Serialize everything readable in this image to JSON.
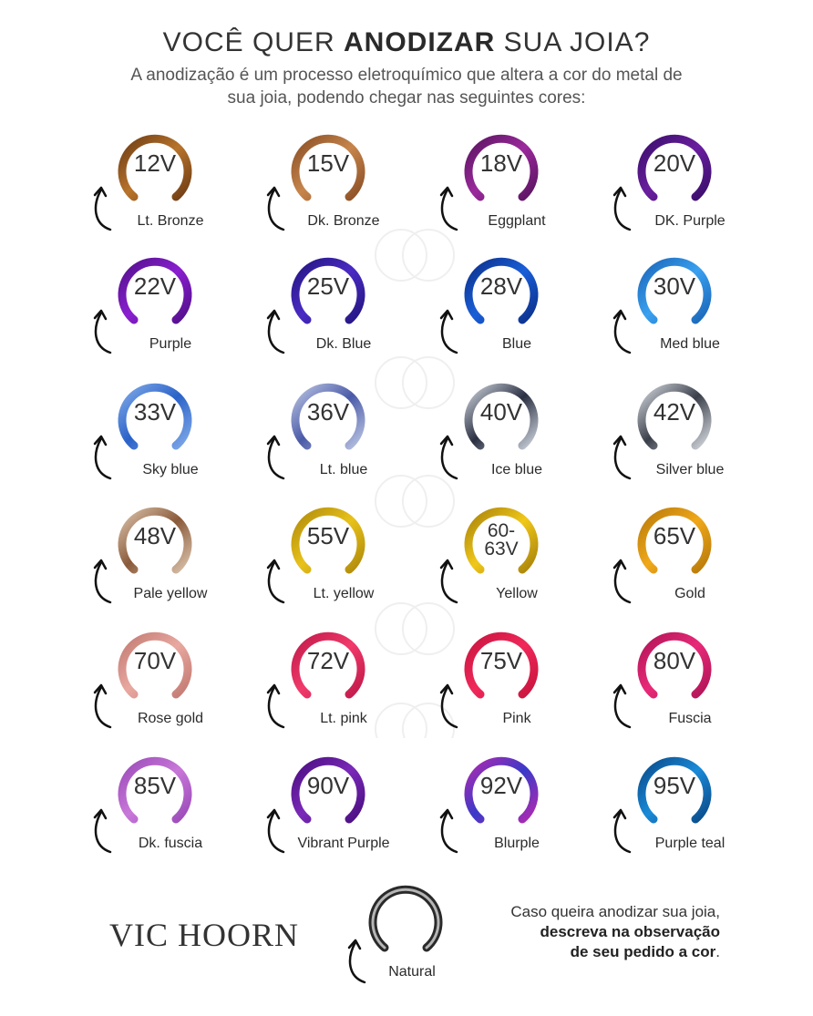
{
  "header": {
    "title_pre": "VOCÊ QUER ",
    "title_bold": "ANODIZAR",
    "title_post": " SUA JOIA?",
    "subtitle": "A anodização é um processo eletroquímico que altera a cor do metal de sua joia, podendo chegar nas seguintes cores:"
  },
  "colors": [
    {
      "volt": "12V",
      "name": "Lt. Bronze",
      "color": "#b8742c",
      "accent": "#6e3c14"
    },
    {
      "volt": "15V",
      "name": "Dk. Bronze",
      "color": "#c7854c",
      "accent": "#8a4f25"
    },
    {
      "volt": "18V",
      "name": "Eggplant",
      "color": "#9b2a9c",
      "accent": "#5a1460"
    },
    {
      "volt": "20V",
      "name": "DK. Purple",
      "color": "#6a1f9e",
      "accent": "#3a0e6b"
    },
    {
      "volt": "22V",
      "name": "Purple",
      "color": "#8a1fd0",
      "accent": "#52108a"
    },
    {
      "volt": "25V",
      "name": "Dk. Blue",
      "color": "#4a2ac4",
      "accent": "#241680"
    },
    {
      "volt": "28V",
      "name": "Blue",
      "color": "#1a5fd8",
      "accent": "#0c2f8a"
    },
    {
      "volt": "30V",
      "name": "Med blue",
      "color": "#3aa0f0",
      "accent": "#1a66b8"
    },
    {
      "volt": "33V",
      "name": "Sky blue",
      "color": "#2a62c8",
      "accent": "#7fa8e8"
    },
    {
      "volt": "36V",
      "name": "Lt. blue",
      "color": "#4a5aa8",
      "accent": "#b8c2e0"
    },
    {
      "volt": "40V",
      "name": "Ice blue",
      "color": "#2a3042",
      "accent": "#c9cfd8"
    },
    {
      "volt": "42V",
      "name": "Silver blue",
      "color": "#3a3f4a",
      "accent": "#d0d4da"
    },
    {
      "volt": "48V",
      "name": "Pale yellow",
      "color": "#8a5a3a",
      "accent": "#d8c0a8"
    },
    {
      "volt": "55V",
      "name": "Lt. yellow",
      "color": "#e8c21a",
      "accent": "#b08a0a"
    },
    {
      "volt": "60- 63V",
      "name": "Yellow",
      "color": "#f0c81a",
      "accent": "#a8820a"
    },
    {
      "volt": "65V",
      "name": "Gold",
      "color": "#f0a81a",
      "accent": "#b87a0a"
    },
    {
      "volt": "70V",
      "name": "Rose gold",
      "color": "#e8a8a0",
      "accent": "#c27a72"
    },
    {
      "volt": "72V",
      "name": "Lt. pink",
      "color": "#f03a6a",
      "accent": "#c01a4a"
    },
    {
      "volt": "75V",
      "name": "Pink",
      "color": "#f0285a",
      "accent": "#c8143e"
    },
    {
      "volt": "80V",
      "name": "Fuscia",
      "color": "#e82a78",
      "accent": "#b01458"
    },
    {
      "volt": "85V",
      "name": "Dk. fuscia",
      "color": "#c878d8",
      "accent": "#9a4ab8"
    },
    {
      "volt": "90V",
      "name": "Vibrant Purple",
      "color": "#7a2ab8",
      "accent": "#4a0e80"
    },
    {
      "volt": "92V",
      "name": "Blurple",
      "color": "#3a3ac8",
      "accent": "#b02ab0"
    },
    {
      "volt": "95V",
      "name": "Purple teal",
      "color": "#1a8ad8",
      "accent": "#0a4a88"
    }
  ],
  "brand": "VIC HOORN",
  "natural": {
    "name": "Natural",
    "color": "#2a2a2a",
    "accent": "#d8d8d8"
  },
  "note": {
    "line1": "Caso queira anodizar sua joia,",
    "line2": "descreva na observação",
    "line3_bold": "de seu pedido a cor",
    "line3_end": "."
  }
}
